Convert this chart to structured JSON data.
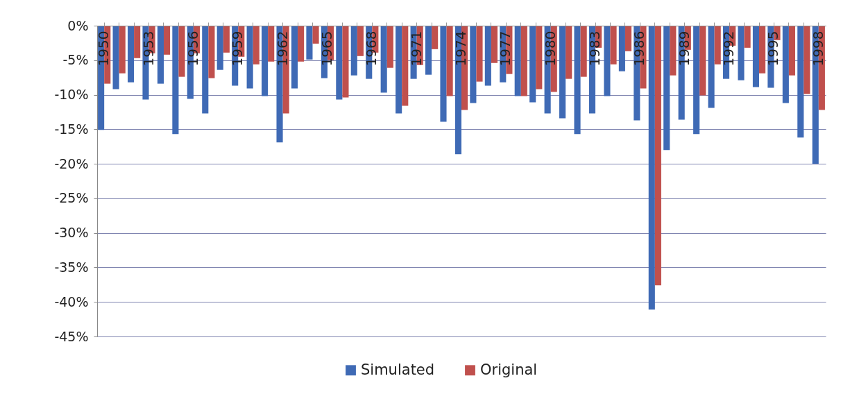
{
  "chart_data": {
    "type": "bar",
    "categories": [
      "1950",
      null,
      null,
      "1953",
      null,
      null,
      "1956",
      null,
      null,
      "1959",
      null,
      null,
      "1962",
      null,
      null,
      "1965",
      null,
      null,
      "1968",
      null,
      null,
      "1971",
      null,
      null,
      "1974",
      null,
      null,
      "1977",
      null,
      null,
      "1980",
      null,
      null,
      "1983",
      null,
      null,
      "1986",
      null,
      null,
      "1989",
      null,
      null,
      "1992",
      null,
      null,
      "1995",
      null,
      null,
      "1998"
    ],
    "series": [
      {
        "name": "Simulated",
        "color": "#3f6ab5",
        "values": [
          -15.1,
          -9.2,
          -8.2,
          -10.7,
          -8.4,
          -15.7,
          -10.6,
          -12.7,
          -6.4,
          -8.7,
          -9.1,
          -10.2,
          -16.9,
          -9.1,
          -4.9,
          -7.6,
          -10.7,
          -7.2,
          -7.7,
          -9.7,
          -12.7,
          -7.7,
          -7.1,
          -13.9,
          -18.6,
          -11.2,
          -8.7,
          -8.2,
          -10.2,
          -11.1,
          -12.7,
          -13.4,
          -15.7,
          -12.7,
          -10.2,
          -6.6,
          -13.7,
          -41.1,
          -18.0,
          -13.6,
          -15.7,
          -11.9,
          -7.7,
          -7.9,
          -8.9,
          -9.0,
          -11.2,
          -16.2,
          -20.0
        ]
      },
      {
        "name": "Original",
        "color": "#c0504d",
        "values": [
          -8.4,
          -6.9,
          -4.7,
          -4.0,
          -4.2,
          -7.4,
          -4.0,
          -7.6,
          -3.9,
          -4.5,
          -5.6,
          -5.2,
          -12.7,
          -5.2,
          -2.6,
          -5.0,
          -10.4,
          -4.4,
          -3.9,
          -6.1,
          -11.6,
          -5.7,
          -3.4,
          -10.2,
          -12.2,
          -8.1,
          -5.4,
          -7.0,
          -10.2,
          -9.2,
          -9.6,
          -7.7,
          -7.4,
          -3.2,
          -5.6,
          -3.7,
          -9.1,
          -37.6,
          -7.2,
          -3.5,
          -10.1,
          -5.6,
          -2.9,
          -3.2,
          -6.9,
          -2.1,
          -7.2,
          -9.9,
          -12.2
        ]
      }
    ],
    "ylim": [
      -45,
      0
    ],
    "yticks": [
      {
        "value": 0,
        "label": "0%"
      },
      {
        "value": -5,
        "label": "-5%"
      },
      {
        "value": -10,
        "label": "-10%"
      },
      {
        "value": -15,
        "label": "-15%"
      },
      {
        "value": -20,
        "label": "-20%"
      },
      {
        "value": -25,
        "label": "-25%"
      },
      {
        "value": -30,
        "label": "-30%"
      },
      {
        "value": -35,
        "label": "-35%"
      },
      {
        "value": -40,
        "label": "-40%"
      },
      {
        "value": -45,
        "label": "-45%"
      }
    ],
    "grid": "y",
    "legend": "bottom"
  }
}
